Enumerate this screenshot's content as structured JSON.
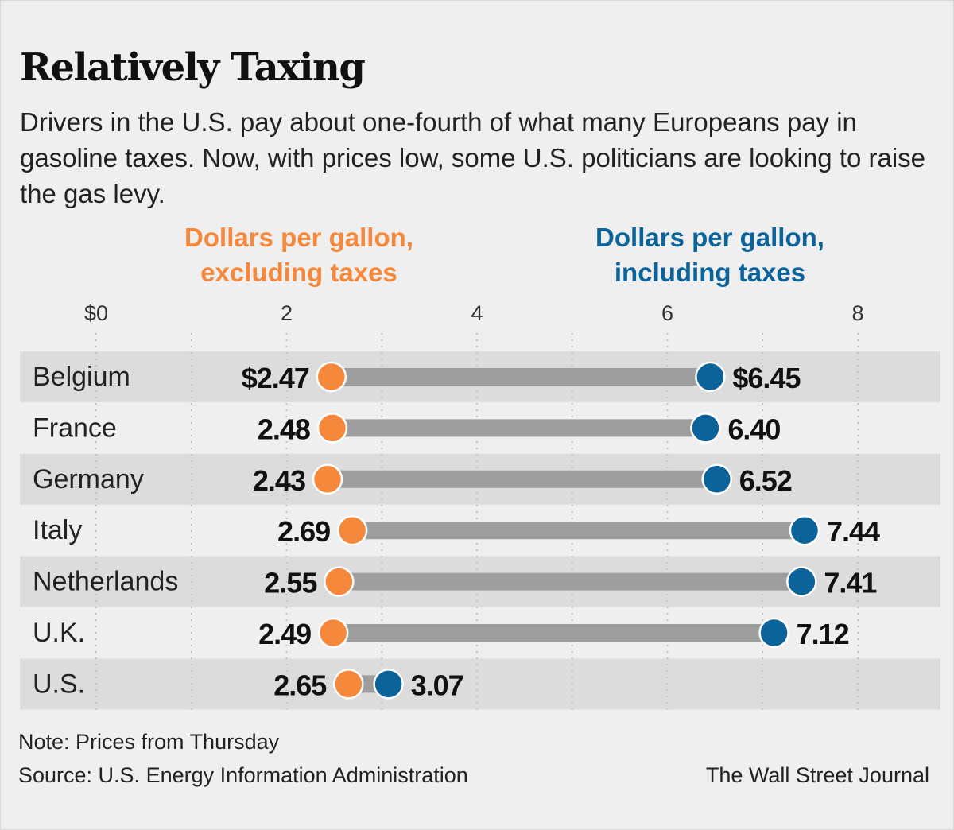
{
  "header": {
    "title": "Relatively Taxing",
    "subtitle": "Drivers in the U.S. pay about one-fourth of what many Europeans pay in gasoline taxes. Now, with prices low, some U.S. politicians are looking to raise the gas levy."
  },
  "legend": {
    "excluding": "Dollars per gallon,\nexcluding taxes",
    "including": "Dollars per gallon,\nincluding taxes"
  },
  "colors": {
    "excluding": "#f5883a",
    "including": "#0b6399",
    "connector": "#9e9e9e",
    "band": "#dcdcdc"
  },
  "chart_data": {
    "type": "dumbbell",
    "xlim": [
      0,
      8
    ],
    "x_ticks": [
      "$0",
      "2",
      "4",
      "6",
      "8"
    ],
    "x_tick_values": [
      0,
      2,
      4,
      6,
      8
    ],
    "series": [
      {
        "name": "Dollars per gallon, excluding taxes",
        "key": "excluding"
      },
      {
        "name": "Dollars per gallon, including taxes",
        "key": "including"
      }
    ],
    "rows": [
      {
        "country": "Belgium",
        "excluding": 2.47,
        "including": 6.45,
        "excluding_label": "$2.47",
        "including_label": "$6.45"
      },
      {
        "country": "France",
        "excluding": 2.48,
        "including": 6.4,
        "excluding_label": "2.48",
        "including_label": "6.40"
      },
      {
        "country": "Germany",
        "excluding": 2.43,
        "including": 6.52,
        "excluding_label": "2.43",
        "including_label": "6.52"
      },
      {
        "country": "Italy",
        "excluding": 2.69,
        "including": 7.44,
        "excluding_label": "2.69",
        "including_label": "7.44"
      },
      {
        "country": "Netherlands",
        "excluding": 2.55,
        "including": 7.41,
        "excluding_label": "2.55",
        "including_label": "7.41"
      },
      {
        "country": "U.K.",
        "excluding": 2.49,
        "including": 7.12,
        "excluding_label": "2.49",
        "including_label": "7.12"
      },
      {
        "country": "U.S.",
        "excluding": 2.65,
        "including": 3.07,
        "excluding_label": "2.65",
        "including_label": "3.07"
      }
    ]
  },
  "footer": {
    "note": "Note: Prices from Thursday",
    "source": "Source: U.S. Energy Information Administration",
    "credit": "The Wall Street Journal"
  }
}
